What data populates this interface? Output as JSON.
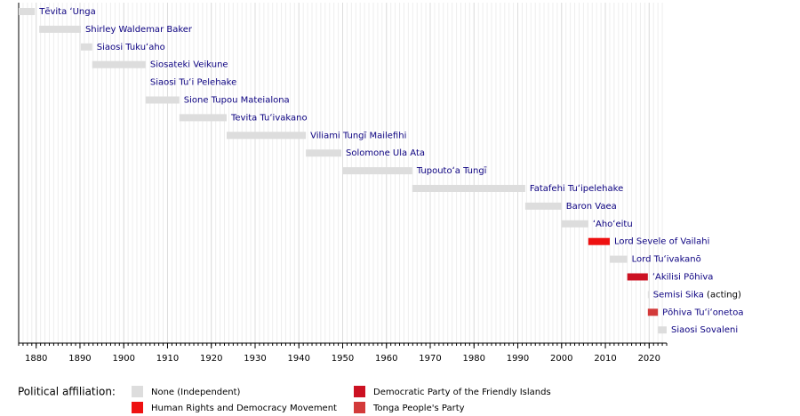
{
  "chart_data": {
    "type": "timeline",
    "categories": [
      "Tēvita ʻUnga",
      "Shirley Waldemar Baker",
      "Siaosi Tukuʻaho",
      "Siosateki Veikune",
      "Siaosi Tuʻi Pelehake",
      "Sione Tupou Mateialona",
      "Tevita Tuʻivakano",
      "Viliami Tungī Mailefihi",
      "Solomone Ula Ata",
      "Tupoutoʻa Tungī",
      "Fatafehi Tuʻipelehake",
      "Baron Vaea",
      "ʻAhoʻeitu",
      "Lord Sevele of Vailahi",
      "Lord Tuʻivakanō",
      "ʻAkilisi Pōhiva",
      "Semisi Sika",
      "Pōhiva Tuʻiʻonetoa",
      "Siaosi Sovaleni"
    ],
    "notes": [
      null,
      null,
      null,
      null,
      null,
      null,
      null,
      null,
      null,
      null,
      null,
      null,
      null,
      null,
      null,
      null,
      "(acting)",
      null,
      null
    ],
    "start": [
      1876,
      1880.7,
      1890.2,
      1892.8,
      1905,
      1905,
      1912.7,
      1923.5,
      1941.6,
      1949.9,
      1965.9,
      1991.7,
      2000,
      2006.1,
      2011,
      2015,
      2019.7,
      2019.7,
      2022
    ],
    "end": [
      1879.7,
      1890.2,
      1892.8,
      1905,
      1905,
      1912.7,
      1923.5,
      1941.6,
      1949.7,
      1965.9,
      1991.7,
      2000,
      2006.1,
      2011,
      2015,
      2019.7,
      2019.9,
      2022,
      2024
    ],
    "party": [
      0,
      0,
      0,
      0,
      0,
      0,
      0,
      0,
      0,
      0,
      0,
      0,
      0,
      1,
      0,
      2,
      0,
      3,
      0
    ],
    "xlim": [
      1876,
      2024
    ],
    "xticks": [
      1880,
      1890,
      1900,
      1910,
      1920,
      1930,
      1940,
      1950,
      1960,
      1970,
      1980,
      1990,
      2000,
      2010,
      2020
    ],
    "minor_grid": true,
    "legend_title": "Political affiliation:",
    "legend": [
      {
        "name": "None (Independent)",
        "color": "#dddddd"
      },
      {
        "name": "Human Rights and Democracy Movement",
        "color": "#ee1111"
      },
      {
        "name": "Democratic Party of the Friendly Islands",
        "color": "#cc1122"
      },
      {
        "name": "Tonga People's Party",
        "color": "#d33a3a"
      }
    ]
  }
}
